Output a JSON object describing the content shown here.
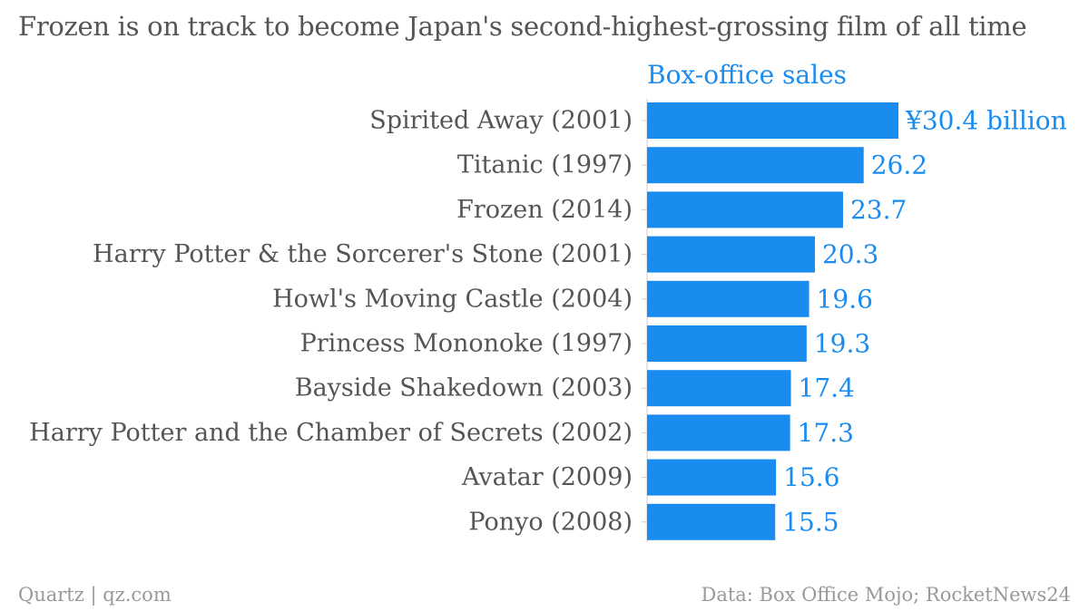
{
  "chart_data": {
    "type": "bar",
    "orientation": "horizontal",
    "title": "Frozen is on track to become Japan's second-highest-grossing film of all time",
    "series_label": "Box-office sales",
    "categories": [
      "Spirited Away (2001)",
      "Titanic (1997)",
      "Frozen (2014)",
      "Harry Potter & the Sorcerer's Stone (2001)",
      "Howl's Moving Castle (2004)",
      "Princess Mononoke (1997)",
      "Bayside Shakedown (2003)",
      "Harry Potter and the Chamber of Secrets (2002)",
      "Avatar (2009)",
      "Ponyo (2008)"
    ],
    "values": [
      30.4,
      26.2,
      23.7,
      20.3,
      19.6,
      19.3,
      17.4,
      17.3,
      15.6,
      15.5
    ],
    "value_labels": [
      "¥30.4 billion",
      "26.2",
      "23.7",
      "20.3",
      "19.6",
      "19.3",
      "17.4",
      "17.3",
      "15.6",
      "15.5"
    ],
    "unit": "billion yen",
    "xlim": [
      0,
      30.4
    ],
    "grid": false,
    "bar_color": "#1a8cf0"
  },
  "footer": {
    "source_left": "Quartz | qz.com",
    "source_right": "Data: Box Office Mojo; RocketNews24"
  }
}
